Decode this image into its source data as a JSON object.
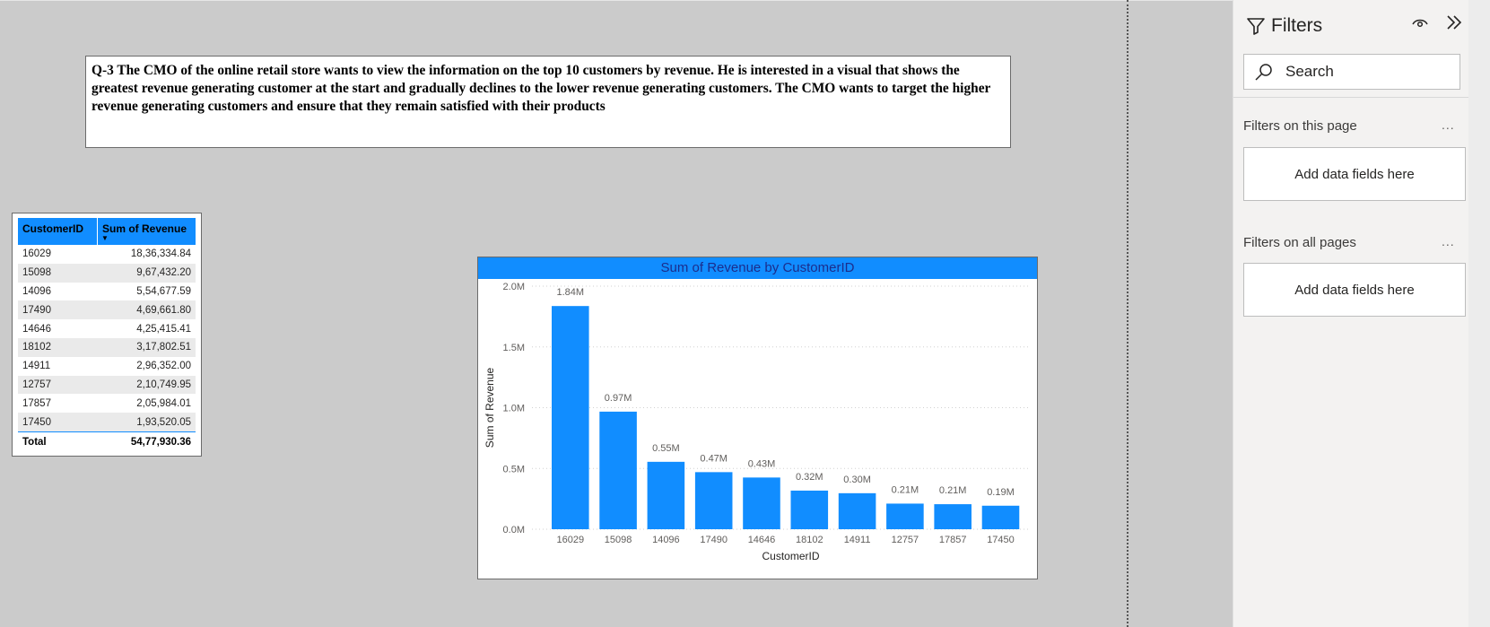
{
  "question": {
    "text": "Q-3 The CMO of the online retail store wants to view the information on the top 10 customers by revenue. He is interested in a visual that shows the greatest revenue generating customer at the start and gradually declines to the lower revenue generating customers. The CMO wants to target the higher revenue generating customers and ensure that they remain satisfied with their products"
  },
  "table": {
    "headers": [
      "CustomerID",
      "Sum of Revenue"
    ],
    "rows": [
      [
        "16029",
        "18,36,334.84"
      ],
      [
        "15098",
        "9,67,432.20"
      ],
      [
        "14096",
        "5,54,677.59"
      ],
      [
        "17490",
        "4,69,661.80"
      ],
      [
        "14646",
        "4,25,415.41"
      ],
      [
        "18102",
        "3,17,802.51"
      ],
      [
        "14911",
        "2,96,352.00"
      ],
      [
        "12757",
        "2,10,749.95"
      ],
      [
        "17857",
        "2,05,984.01"
      ],
      [
        "17450",
        "1,93,520.05"
      ]
    ],
    "total_label": "Total",
    "total_value": "54,77,930.36"
  },
  "chart_data": {
    "type": "bar",
    "title": "Sum of Revenue by CustomerID",
    "xlabel": "CustomerID",
    "ylabel": "Sum of Revenue",
    "categories": [
      "16029",
      "15098",
      "14096",
      "17490",
      "14646",
      "18102",
      "14911",
      "12757",
      "17857",
      "17450"
    ],
    "values": [
      1836334.84,
      967432.2,
      554677.59,
      469661.8,
      425415.41,
      317802.51,
      296352.0,
      210749.95,
      205984.01,
      193520.05
    ],
    "data_labels": [
      "1.84M",
      "0.97M",
      "0.55M",
      "0.47M",
      "0.43M",
      "0.32M",
      "0.30M",
      "0.21M",
      "0.21M",
      "0.19M"
    ],
    "yticks": [
      0,
      500000,
      1000000,
      1500000,
      2000000
    ],
    "ytick_labels": [
      "0.0M",
      "0.5M",
      "1.0M",
      "1.5M",
      "2.0M"
    ],
    "ylim": [
      0,
      2000000
    ],
    "grid": true,
    "bar_color": "#118dff"
  },
  "filters": {
    "title": "Filters",
    "search_placeholder": "Search",
    "section_page": "Filters on this page",
    "section_all": "Filters on all pages",
    "more": "...",
    "add_fields": "Add data fields here"
  }
}
